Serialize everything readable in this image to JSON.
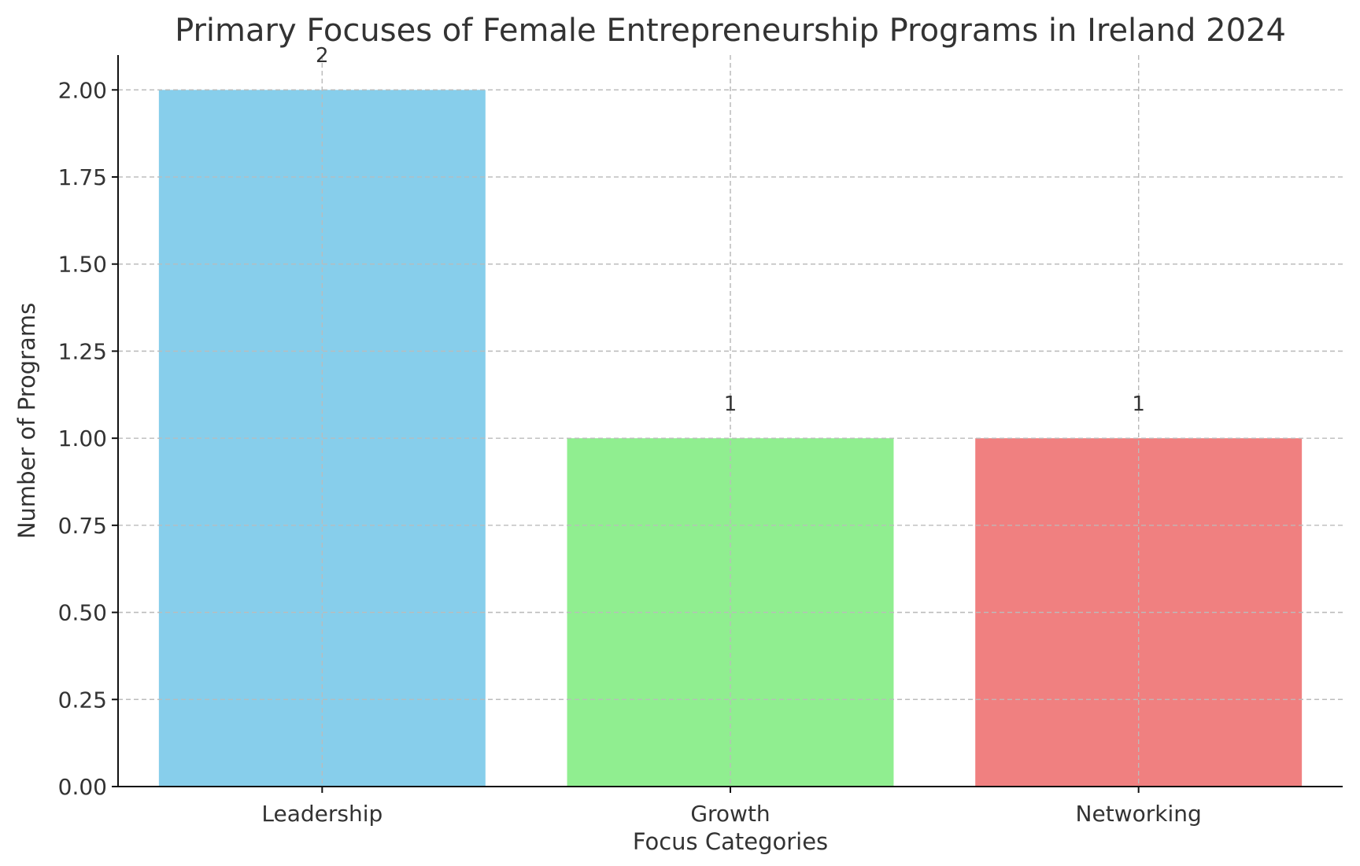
{
  "chart_data": {
    "type": "bar",
    "title": "Primary Focuses of Female Entrepreneurship Programs in Ireland 2024",
    "xlabel": "Focus Categories",
    "ylabel": "Number of Programs",
    "categories": [
      "Leadership",
      "Growth",
      "Networking"
    ],
    "values": [
      2,
      1,
      1
    ],
    "data_labels": [
      "2",
      "1",
      "1"
    ],
    "colors": [
      "#87CEEB",
      "#90EE90",
      "#F08080"
    ],
    "ylim": [
      0,
      2.1
    ],
    "yticks": [
      0,
      0.25,
      0.5,
      0.75,
      1.0,
      1.25,
      1.5,
      1.75,
      2.0
    ],
    "ytick_labels": [
      "0.00",
      "0.25",
      "0.50",
      "0.75",
      "1.00",
      "1.25",
      "1.50",
      "1.75",
      "2.00"
    ],
    "grid": true,
    "legend": "none"
  }
}
